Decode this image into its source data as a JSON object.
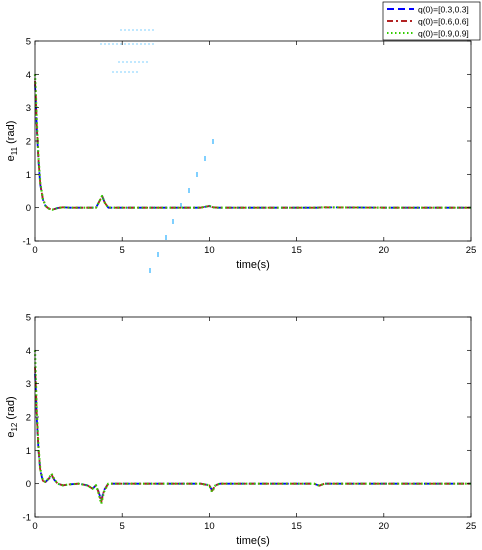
{
  "legend": {
    "entries": [
      {
        "label": "q(0)=[0.3,0.3]",
        "color": "#0000ff",
        "style": "dashed"
      },
      {
        "label": "q(0)=[0.6,0.6]",
        "color": "#b22222",
        "style": "dashdot"
      },
      {
        "label": "q(0)=[0.9,0.9]",
        "color": "#33cc00",
        "style": "dotted"
      }
    ],
    "placement": "top-right"
  },
  "colors": {
    "axes": "#000000",
    "artifact": "#80d0ff"
  },
  "chart_data": [
    {
      "type": "line",
      "xlabel": "time(s)",
      "ylabel_main": "e",
      "ylabel_sub": "11",
      "ylabel_unit": " (rad)",
      "xlim": [
        0,
        25
      ],
      "ylim": [
        -1,
        5
      ],
      "xticks": [
        "0",
        "5",
        "10",
        "15",
        "20",
        "25"
      ],
      "yticks": [
        "-1",
        "0",
        "1",
        "2",
        "3",
        "4",
        "5"
      ],
      "grid": false,
      "series": [
        {
          "name": "q(0)=[0.3,0.3]",
          "x": [
            0,
            0.05,
            0.1,
            0.2,
            0.3,
            0.45,
            0.6,
            0.8,
            1.0,
            1.3,
            1.6,
            2.0,
            2.5,
            3.0,
            3.5,
            3.7,
            3.85,
            4.0,
            4.2,
            5.0,
            7.0,
            9.5,
            10.0,
            10.2,
            10.5,
            12.0,
            16.2,
            16.5,
            20.0,
            25.0
          ],
          "y": [
            3.7,
            3.2,
            2.4,
            1.4,
            0.7,
            0.25,
            0.05,
            -0.03,
            -0.06,
            -0.01,
            0.01,
            0.0,
            0.0,
            0.0,
            0.0,
            0.2,
            0.35,
            0.15,
            0.0,
            0.0,
            0.0,
            0.0,
            0.05,
            0.01,
            0.0,
            0.0,
            0.0,
            0.01,
            0.0,
            0.0
          ]
        },
        {
          "name": "q(0)=[0.6,0.6]",
          "x": [
            0,
            0.05,
            0.1,
            0.2,
            0.3,
            0.45,
            0.6,
            0.8,
            1.0,
            1.3,
            1.6,
            2.0,
            2.5,
            3.0,
            3.5,
            3.7,
            3.85,
            4.0,
            4.2,
            5.0,
            7.0,
            9.5,
            10.0,
            10.2,
            10.5,
            12.0,
            16.2,
            16.5,
            20.0,
            25.0
          ],
          "y": [
            3.8,
            3.3,
            2.5,
            1.45,
            0.72,
            0.26,
            0.05,
            -0.03,
            -0.06,
            -0.01,
            0.01,
            0.0,
            0.0,
            0.0,
            0.0,
            0.2,
            0.35,
            0.15,
            0.0,
            0.0,
            0.0,
            0.0,
            0.05,
            0.01,
            0.0,
            0.0,
            0.0,
            0.01,
            0.0,
            0.0
          ]
        },
        {
          "name": "q(0)=[0.9,0.9]",
          "x": [
            0,
            0.05,
            0.1,
            0.2,
            0.3,
            0.45,
            0.6,
            0.8,
            1.0,
            1.3,
            1.6,
            2.0,
            2.5,
            3.0,
            3.5,
            3.7,
            3.85,
            4.0,
            4.2,
            5.0,
            7.0,
            9.5,
            10.0,
            10.2,
            10.5,
            12.0,
            16.2,
            16.5,
            20.0,
            25.0
          ],
          "y": [
            4.0,
            3.4,
            2.6,
            1.5,
            0.75,
            0.27,
            0.06,
            -0.03,
            -0.06,
            -0.01,
            0.01,
            0.0,
            0.0,
            0.0,
            0.0,
            0.2,
            0.35,
            0.15,
            0.0,
            0.0,
            0.0,
            0.0,
            0.05,
            0.01,
            0.0,
            0.0,
            0.0,
            0.01,
            0.0,
            0.0
          ]
        }
      ]
    },
    {
      "type": "line",
      "xlabel": "time(s)",
      "ylabel_main": "e",
      "ylabel_sub": "12",
      "ylabel_unit": " (rad)",
      "xlim": [
        0,
        25
      ],
      "ylim": [
        -1,
        5
      ],
      "xticks": [
        "0",
        "5",
        "10",
        "15",
        "20",
        "25"
      ],
      "yticks": [
        "-1",
        "0",
        "1",
        "2",
        "3",
        "4",
        "5"
      ],
      "grid": false,
      "series": [
        {
          "name": "q(0)=[0.3,0.3]",
          "x": [
            0,
            0.05,
            0.1,
            0.2,
            0.3,
            0.45,
            0.6,
            0.8,
            0.95,
            1.1,
            1.3,
            1.6,
            2.0,
            2.5,
            3.0,
            3.3,
            3.5,
            3.65,
            3.8,
            3.95,
            4.2,
            5.0,
            7.0,
            9.5,
            10.0,
            10.15,
            10.35,
            10.6,
            12.0,
            16.0,
            16.3,
            16.6,
            20.0,
            25.0
          ],
          "y": [
            3.3,
            2.8,
            2.0,
            1.0,
            0.4,
            0.08,
            0.05,
            0.15,
            0.25,
            0.12,
            0.0,
            -0.05,
            -0.02,
            0.0,
            -0.05,
            -0.15,
            -0.05,
            -0.25,
            -0.5,
            -0.2,
            0.0,
            0.0,
            0.0,
            0.0,
            -0.05,
            -0.2,
            -0.05,
            0.0,
            0.0,
            0.0,
            -0.06,
            0.0,
            0.0,
            0.0
          ]
        },
        {
          "name": "q(0)=[0.6,0.6]",
          "x": [
            0,
            0.05,
            0.1,
            0.2,
            0.3,
            0.45,
            0.6,
            0.8,
            0.95,
            1.1,
            1.3,
            1.6,
            2.0,
            2.5,
            3.0,
            3.3,
            3.5,
            3.65,
            3.8,
            3.95,
            4.2,
            5.0,
            7.0,
            9.5,
            10.0,
            10.15,
            10.35,
            10.6,
            12.0,
            16.0,
            16.3,
            16.6,
            20.0,
            25.0
          ],
          "y": [
            3.5,
            2.9,
            2.1,
            1.05,
            0.42,
            0.09,
            0.05,
            0.16,
            0.27,
            0.13,
            0.0,
            -0.05,
            -0.02,
            0.0,
            -0.05,
            -0.15,
            -0.05,
            -0.27,
            -0.55,
            -0.22,
            0.0,
            0.0,
            0.0,
            0.0,
            -0.05,
            -0.22,
            -0.05,
            0.0,
            0.0,
            0.0,
            -0.06,
            0.0,
            0.0,
            0.0
          ]
        },
        {
          "name": "q(0)=[0.9,0.9]",
          "x": [
            0,
            0.05,
            0.1,
            0.2,
            0.3,
            0.45,
            0.6,
            0.8,
            0.95,
            1.1,
            1.3,
            1.6,
            2.0,
            2.5,
            3.0,
            3.3,
            3.5,
            3.65,
            3.8,
            3.95,
            4.2,
            5.0,
            7.0,
            9.5,
            10.0,
            10.15,
            10.35,
            10.6,
            12.0,
            16.0,
            16.3,
            16.6,
            20.0,
            25.0
          ],
          "y": [
            4.0,
            3.1,
            2.2,
            1.1,
            0.45,
            0.1,
            0.05,
            0.17,
            0.3,
            0.14,
            0.0,
            -0.05,
            -0.02,
            0.0,
            -0.05,
            -0.15,
            -0.05,
            -0.3,
            -0.6,
            -0.25,
            0.0,
            0.0,
            0.0,
            0.0,
            -0.05,
            -0.25,
            -0.05,
            0.0,
            0.0,
            0.0,
            -0.06,
            0.0,
            0.0,
            0.0
          ]
        }
      ]
    }
  ]
}
